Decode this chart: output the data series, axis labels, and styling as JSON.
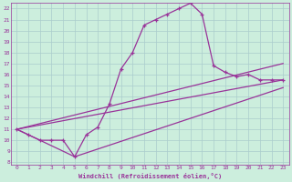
{
  "xlabel": "Windchill (Refroidissement éolien,°C)",
  "bg_color": "#cceedd",
  "line_color": "#993399",
  "grid_color": "#aacccc",
  "xlim": [
    -0.5,
    23.5
  ],
  "ylim": [
    7.8,
    22.5
  ],
  "xticks": [
    0,
    1,
    2,
    3,
    4,
    5,
    6,
    7,
    8,
    9,
    10,
    11,
    12,
    13,
    14,
    15,
    16,
    17,
    18,
    19,
    20,
    21,
    22,
    23
  ],
  "yticks": [
    8,
    9,
    10,
    11,
    12,
    13,
    14,
    15,
    16,
    17,
    18,
    19,
    20,
    21,
    22
  ],
  "curve1_x": [
    0,
    1,
    2,
    3,
    4,
    5,
    6,
    7,
    8,
    9,
    10,
    11,
    12,
    13,
    14,
    15,
    16,
    17,
    18,
    19,
    20,
    21,
    22,
    23
  ],
  "curve1_y": [
    11.0,
    10.5,
    10.0,
    10.0,
    10.0,
    8.5,
    10.5,
    11.2,
    13.3,
    16.5,
    18.0,
    20.5,
    21.0,
    21.5,
    22.0,
    22.5,
    21.5,
    16.8,
    16.2,
    15.8,
    16.0,
    15.5,
    15.5,
    15.5
  ],
  "curve2_x": [
    0,
    23
  ],
  "curve2_y": [
    11.0,
    17.0
  ],
  "curve3_x": [
    0,
    23
  ],
  "curve3_y": [
    11.0,
    15.5
  ],
  "curve4_x": [
    0,
    5,
    23
  ],
  "curve4_y": [
    11.0,
    8.5,
    14.8
  ]
}
